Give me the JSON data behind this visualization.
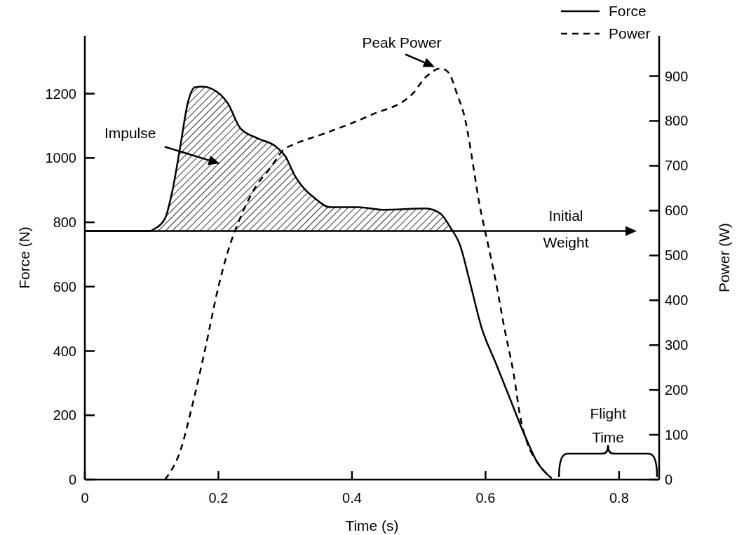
{
  "chart_data": {
    "type": "line",
    "xlabel": "Time (s)",
    "ylabel": "Force (N)",
    "y2label": "Power (W)",
    "xlim": [
      0,
      0.86
    ],
    "xticks": [
      0,
      0.2,
      0.4,
      0.6,
      0.8
    ],
    "ylim": [
      0,
      1380
    ],
    "yticks": [
      0,
      200,
      400,
      600,
      800,
      1000,
      1200
    ],
    "y2lim": [
      0,
      990
    ],
    "y2ticks": [
      0,
      100,
      200,
      300,
      400,
      500,
      600,
      700,
      800,
      900
    ],
    "legend": "top right",
    "series": [
      {
        "name": "Force",
        "color": "#000000",
        "line_style": "solid",
        "x": [
          0,
          0.05,
          0.098,
          0.102,
          0.12,
          0.131,
          0.143,
          0.154,
          0.165,
          0.176,
          0.203,
          0.214,
          0.233,
          0.259,
          0.285,
          0.3,
          0.315,
          0.345,
          0.367,
          0.409,
          0.446,
          0.51,
          0.532,
          0.548,
          0.562,
          0.576,
          0.594,
          0.615,
          0.636,
          0.657,
          0.678,
          0.699
        ],
        "values": [
          773,
          773,
          773,
          777,
          812,
          897,
          1037,
          1170,
          1220,
          1222,
          1197,
          1170,
          1092,
          1061,
          1037,
          1006,
          943,
          874,
          847,
          847,
          839,
          843,
          828,
          782,
          728,
          619,
          473,
          364,
          255,
          146,
          52,
          4
        ],
        "lower": [
          null,
          null,
          773,
          773,
          773,
          773,
          773,
          773,
          773,
          773,
          773,
          773,
          773,
          773,
          773,
          773,
          773,
          773,
          773,
          773,
          773,
          773,
          773,
          773,
          null,
          null,
          null,
          null,
          null,
          null,
          null,
          null
        ],
        "upper": [
          null,
          null,
          773,
          777,
          812,
          897,
          1037,
          1170,
          1220,
          1222,
          1197,
          1170,
          1092,
          1061,
          1037,
          1006,
          943,
          874,
          847,
          847,
          839,
          843,
          828,
          782,
          null,
          null,
          null,
          null,
          null,
          null,
          null,
          null
        ]
      },
      {
        "name": "Power",
        "color": "#000000",
        "line_style": "dashed",
        "axis": "y2",
        "x": [
          0.12,
          0.144,
          0.16,
          0.18,
          0.2,
          0.214,
          0.233,
          0.255,
          0.278,
          0.297,
          0.315,
          0.353,
          0.428,
          0.491,
          0.51,
          0.533,
          0.544,
          0.559,
          0.566,
          0.594,
          0.6,
          0.615,
          0.628,
          0.642,
          0.653,
          0.663,
          0.678,
          0.699
        ],
        "values": [
          0,
          69,
          160,
          290,
          430,
          508,
          585,
          651,
          696,
          735,
          749,
          769,
          813,
          861,
          897,
          917,
          909,
          853,
          824,
          591,
          550,
          445,
          340,
          237,
          132,
          80,
          38,
          3
        ]
      }
    ],
    "ref_lines": [
      {
        "axis": "y",
        "value": 773,
        "label": "Initial Weight"
      }
    ],
    "annotations": [
      "Impulse",
      {
        "text": "Peak Power",
        "x": 0.524,
        "y": 1283
      },
      "Flight Time"
    ]
  }
}
